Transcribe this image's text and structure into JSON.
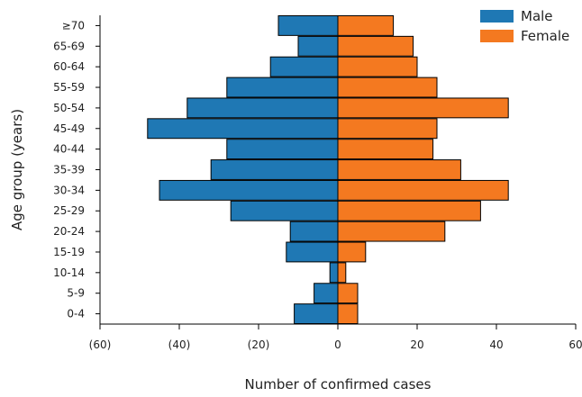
{
  "chart_data": {
    "type": "bar",
    "orientation": "horizontal",
    "layout": "population-pyramid",
    "categories": [
      "0-4",
      "5-9",
      "10-14",
      "15-19",
      "20-24",
      "25-29",
      "30-34",
      "35-39",
      "40-44",
      "45-49",
      "50-54",
      "55-59",
      "60-64",
      "65-69",
      "≥70"
    ],
    "series": [
      {
        "name": "Male",
        "color": "#1f78b4",
        "values": [
          11,
          6,
          2,
          13,
          12,
          27,
          45,
          32,
          28,
          48,
          38,
          28,
          17,
          10,
          15
        ]
      },
      {
        "name": "Female",
        "color": "#f47920",
        "values": [
          5,
          5,
          2,
          7,
          27,
          36,
          43,
          31,
          24,
          25,
          43,
          25,
          20,
          19,
          14
        ]
      }
    ],
    "xlim": [
      -60,
      60
    ],
    "x_ticks": [
      -60,
      -40,
      -20,
      0,
      20,
      40,
      60
    ],
    "x_tick_labels": [
      "(60)",
      "(40)",
      "(20)",
      "0",
      "20",
      "40",
      "60"
    ],
    "xlabel": "Number of confirmed cases",
    "ylabel": "Age group (years)",
    "title": "",
    "legend_position": "top-right",
    "grid": false
  }
}
